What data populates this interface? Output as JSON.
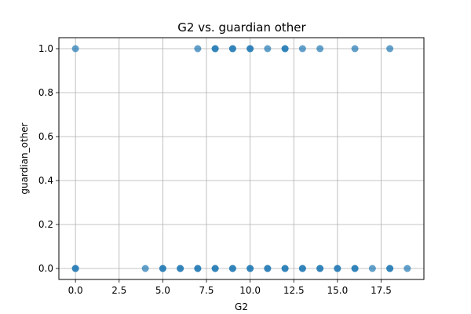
{
  "chart_data": {
    "type": "scatter",
    "title": "G2 vs. guardian other",
    "xlabel": "G2",
    "ylabel": "guardian_other",
    "xlim": [
      -0.95,
      19.95
    ],
    "ylim": [
      -0.05,
      1.05
    ],
    "xticks": [
      0.0,
      2.5,
      5.0,
      7.5,
      10.0,
      12.5,
      15.0,
      17.5
    ],
    "xtick_labels": [
      "0.0",
      "2.5",
      "5.0",
      "7.5",
      "10.0",
      "12.5",
      "15.0",
      "17.5"
    ],
    "yticks": [
      0.0,
      0.2,
      0.4,
      0.6,
      0.8,
      1.0
    ],
    "ytick_labels": [
      "0.0",
      "0.2",
      "0.4",
      "0.6",
      "0.8",
      "1.0"
    ],
    "grid": true,
    "color": "#1f77b4",
    "points": [
      {
        "x": 0,
        "y": 1
      },
      {
        "x": 7,
        "y": 1
      },
      {
        "x": 8,
        "y": 1
      },
      {
        "x": 8,
        "y": 1
      },
      {
        "x": 9,
        "y": 1
      },
      {
        "x": 9,
        "y": 1
      },
      {
        "x": 10,
        "y": 1
      },
      {
        "x": 10,
        "y": 1
      },
      {
        "x": 11,
        "y": 1
      },
      {
        "x": 12,
        "y": 1
      },
      {
        "x": 12,
        "y": 1
      },
      {
        "x": 13,
        "y": 1
      },
      {
        "x": 14,
        "y": 1
      },
      {
        "x": 16,
        "y": 1
      },
      {
        "x": 18,
        "y": 1
      },
      {
        "x": 0,
        "y": 0
      },
      {
        "x": 0,
        "y": 0
      },
      {
        "x": 4,
        "y": 0
      },
      {
        "x": 5,
        "y": 0
      },
      {
        "x": 5,
        "y": 0
      },
      {
        "x": 6,
        "y": 0
      },
      {
        "x": 6,
        "y": 0
      },
      {
        "x": 7,
        "y": 0
      },
      {
        "x": 7,
        "y": 0
      },
      {
        "x": 8,
        "y": 0
      },
      {
        "x": 8,
        "y": 0
      },
      {
        "x": 9,
        "y": 0
      },
      {
        "x": 9,
        "y": 0
      },
      {
        "x": 10,
        "y": 0
      },
      {
        "x": 10,
        "y": 0
      },
      {
        "x": 11,
        "y": 0
      },
      {
        "x": 11,
        "y": 0
      },
      {
        "x": 12,
        "y": 0
      },
      {
        "x": 12,
        "y": 0
      },
      {
        "x": 13,
        "y": 0
      },
      {
        "x": 13,
        "y": 0
      },
      {
        "x": 14,
        "y": 0
      },
      {
        "x": 14,
        "y": 0
      },
      {
        "x": 15,
        "y": 0
      },
      {
        "x": 15,
        "y": 0
      },
      {
        "x": 16,
        "y": 0
      },
      {
        "x": 16,
        "y": 0
      },
      {
        "x": 17,
        "y": 0
      },
      {
        "x": 18,
        "y": 0
      },
      {
        "x": 18,
        "y": 0
      },
      {
        "x": 19,
        "y": 0
      }
    ]
  }
}
